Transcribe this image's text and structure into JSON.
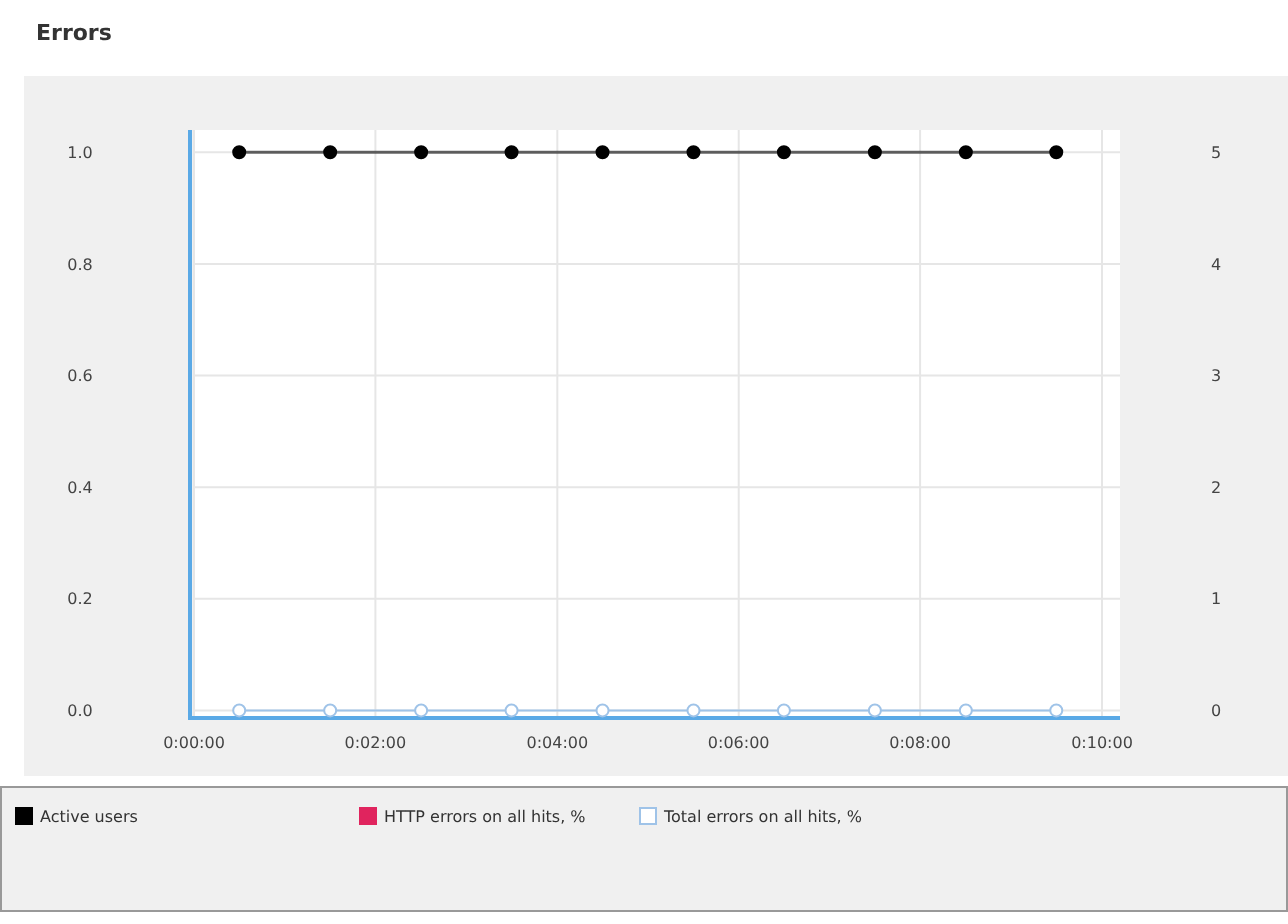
{
  "chart_data": {
    "type": "line",
    "title": "Errors",
    "x": [
      0.0083,
      0.025,
      0.0417,
      0.0583,
      0.075,
      0.0917,
      0.1083,
      0.125,
      0.1417,
      0.1583
    ],
    "series": [
      {
        "name": "Active users",
        "color": "#000000",
        "axis": "y2",
        "values": [
          5,
          5,
          5,
          5,
          5,
          5,
          5,
          5,
          5,
          5
        ]
      },
      {
        "name": "HTTP errors on all hits, %",
        "color": "#e0245e",
        "values": [
          null,
          null,
          null,
          null,
          null,
          null,
          null,
          null,
          null,
          null
        ]
      },
      {
        "name": "Total errors on all hits, %",
        "color": "#9fc3e8",
        "values": [
          0,
          0,
          0,
          0,
          0,
          0,
          0,
          0,
          0,
          0
        ]
      }
    ],
    "xlim": [
      0,
      0.17
    ],
    "xticks": [
      {
        "value": 0,
        "label": "0:00:00"
      },
      {
        "value": 0.0333,
        "label": "0:02:00"
      },
      {
        "value": 0.0667,
        "label": "0:04:00"
      },
      {
        "value": 0.1,
        "label": "0:06:00"
      },
      {
        "value": 0.1333,
        "label": "0:08:00"
      },
      {
        "value": 0.1667,
        "label": "0:10:00"
      }
    ],
    "ylim": [
      -0.01,
      1.04
    ],
    "yticks": [
      {
        "value": 0,
        "label": "0.0"
      },
      {
        "value": 0.2,
        "label": "0.2"
      },
      {
        "value": 0.4,
        "label": "0.4"
      },
      {
        "value": 0.6,
        "label": "0.6"
      },
      {
        "value": 0.8,
        "label": "0.8"
      },
      {
        "value": 1,
        "label": "1.0"
      }
    ],
    "y2lim": [
      -0.05,
      5.2
    ],
    "y2ticks": [
      0,
      1,
      2,
      3,
      4,
      5
    ],
    "grid": true,
    "legend": "bottom",
    "marker": "circle",
    "line_style": "solid"
  }
}
